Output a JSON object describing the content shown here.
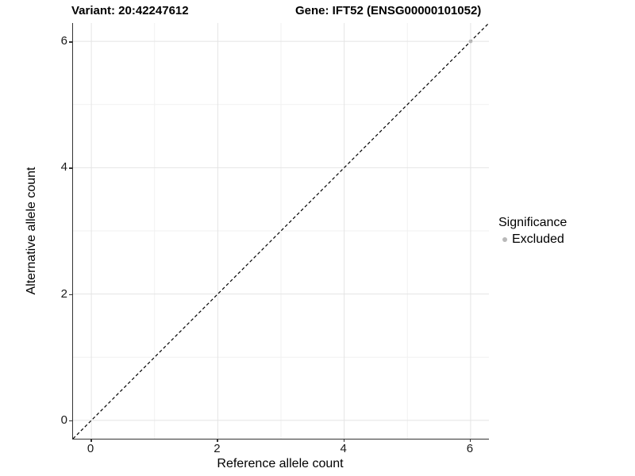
{
  "titles": {
    "variant": "Variant: 20:42247612",
    "gene": "Gene: IFT52 (ENSG00000101052)"
  },
  "chart_data": {
    "type": "scatter",
    "title": "Variant: 20:42247612   Gene: IFT52 (ENSG00000101052)",
    "xlabel": "Reference allele count",
    "ylabel": "Alternative allele count",
    "xlim": [
      -0.29,
      6.29
    ],
    "ylim": [
      -0.29,
      6.29
    ],
    "x_ticks": [
      0,
      2,
      4,
      6
    ],
    "y_ticks": [
      0,
      2,
      4,
      6
    ],
    "x_minor_ticks": [
      1,
      3,
      5
    ],
    "y_minor_ticks": [
      1,
      3,
      5
    ],
    "grid": true,
    "series": [
      {
        "name": "Excluded",
        "color": "#b9b9b9",
        "points": [
          {
            "x": 6,
            "y": 6
          }
        ]
      }
    ],
    "reference_line": {
      "type": "identity",
      "slope": 1,
      "intercept": 0,
      "style": "dashed",
      "color": "#000000"
    },
    "legend": {
      "title": "Significance",
      "position": "right",
      "entries": [
        {
          "label": "Excluded",
          "color": "#b9b9b9"
        }
      ]
    }
  },
  "colors": {
    "background": "#ffffff",
    "axis_line": "#333333",
    "grid_major": "#e4e4e4",
    "grid_minor": "#f1f1f1",
    "point": "#b9b9b9",
    "text": "#000000"
  }
}
